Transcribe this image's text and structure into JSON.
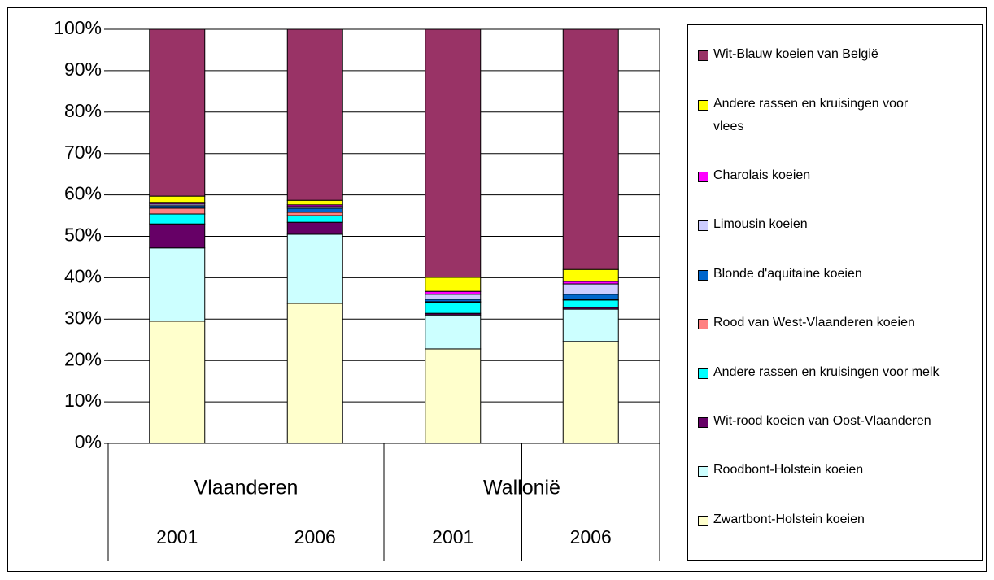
{
  "chart_data": {
    "type": "stacked_bar",
    "groups": [
      "Vlaanderen",
      "Wallonië"
    ],
    "categories": [
      "2001",
      "2006",
      "2001",
      "2006"
    ],
    "ylim": [
      0,
      100
    ],
    "yticks": [
      {
        "value": 0,
        "label": "0%"
      },
      {
        "value": 10,
        "label": "10%"
      },
      {
        "value": 20,
        "label": "20%"
      },
      {
        "value": 30,
        "label": "30%"
      },
      {
        "value": 40,
        "label": "40%"
      },
      {
        "value": 50,
        "label": "50%"
      },
      {
        "value": 60,
        "label": "60%"
      },
      {
        "value": 70,
        "label": "70%"
      },
      {
        "value": 80,
        "label": "80%"
      },
      {
        "value": 90,
        "label": "90%"
      },
      {
        "value": 100,
        "label": "100%"
      }
    ],
    "grid": true,
    "legend": "right",
    "series": [
      {
        "name": "Zwartbont-Holstein koeien",
        "color": "#ffffcc",
        "values": [
          29.5,
          33.8,
          22.8,
          24.6
        ]
      },
      {
        "name": "Roodbont-Holstein koeien",
        "color": "#ccffff",
        "values": [
          17.7,
          16.7,
          8.2,
          7.8
        ]
      },
      {
        "name": "Wit-rood koeien van Oost-Vlaanderen",
        "color": "#660066",
        "values": [
          5.8,
          2.9,
          0.4,
          0.4
        ]
      },
      {
        "name": "Andere rassen en kruisingen voor melk",
        "color": "#00ffff",
        "values": [
          2.4,
          1.6,
          2.6,
          1.8
        ]
      },
      {
        "name": "Rood van West-Vlaanderen koeien",
        "color": "#ff8080",
        "values": [
          1.4,
          0.8,
          0.2,
          0.2
        ]
      },
      {
        "name": "Blonde d'aquitaine koeien",
        "color": "#0066cc",
        "values": [
          0.6,
          1.0,
          0.6,
          1.2
        ]
      },
      {
        "name": "Limousin koeien",
        "color": "#ccccff",
        "values": [
          0.4,
          0.4,
          1.2,
          2.5
        ]
      },
      {
        "name": "Charolais koeien",
        "color": "#ff00ff",
        "values": [
          0.4,
          0.4,
          0.7,
          0.6
        ]
      },
      {
        "name": "Andere rassen en kruisingen voor vlees",
        "color": "#ffff00",
        "values": [
          1.5,
          1.1,
          3.4,
          2.9
        ]
      },
      {
        "name": "Wit-Blauw koeien van België",
        "color": "#993366",
        "values": [
          40.3,
          41.3,
          59.9,
          58.0
        ]
      }
    ]
  }
}
